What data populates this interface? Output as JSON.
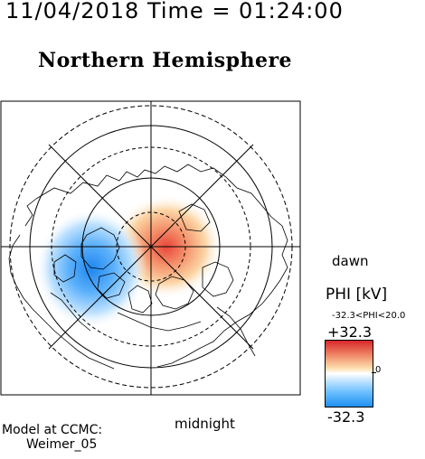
{
  "header": {
    "datetime": "11/04/2018 Time = 01:24:00",
    "title": "Northern Hemisphere"
  },
  "map": {
    "projection": "polar north",
    "label_dawn": "dawn",
    "label_midnight": "midnight"
  },
  "colorbar": {
    "title": "PHI [kV]",
    "range_text": "-32.3<PHI<20.0",
    "max_label": "+32.3",
    "zero_label": "0",
    "min_label": "-32.3",
    "colors": {
      "positive": "#d8262b",
      "neutral": "#ffffff",
      "negative": "#1f8ff0"
    }
  },
  "credit": {
    "line1": "Model at CCMC:",
    "line2": "Weimer_05"
  }
}
